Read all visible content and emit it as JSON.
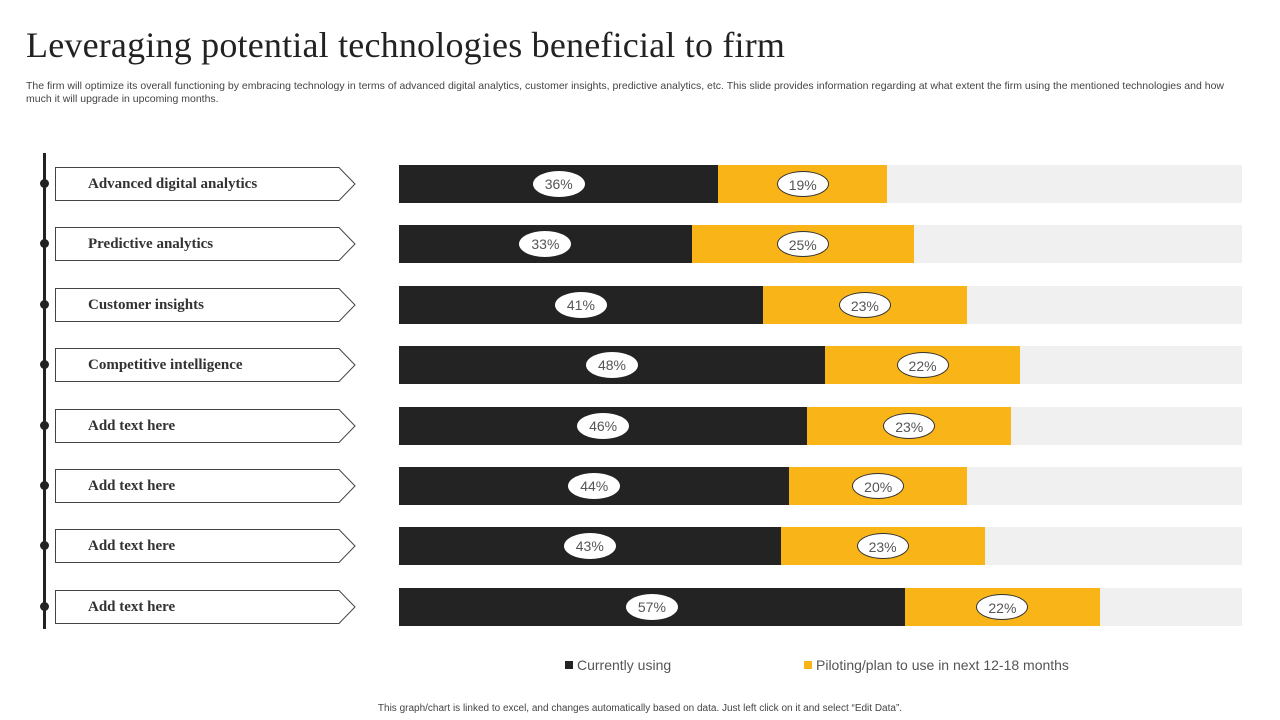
{
  "title": "Leveraging potential technologies beneficial to firm",
  "subtitle": "The firm will optimize its overall functioning by embracing technology in terms of advanced digital analytics, customer insights, predictive analytics, etc. This slide provides information regarding at what extent the firm using the mentioned technologies and how much it will upgrade in upcoming months.",
  "footer": "This graph/chart is linked to excel, and changes automatically based on data. Just left click on it and select “Edit Data”.",
  "colors": {
    "currently_using": "#232323",
    "piloting": "#f9b418",
    "track": "#f0f0f0"
  },
  "chart_data": {
    "type": "bar",
    "orientation": "horizontal",
    "stacked": true,
    "title": "",
    "xlabel": "",
    "ylabel": "",
    "xlim": [
      0,
      95
    ],
    "grid": false,
    "legend_position": "bottom",
    "categories": [
      "Advanced digital analytics",
      "Predictive analytics",
      "Customer insights",
      "Competitive intelligence",
      "Add text here",
      "Add text here",
      "Add text here",
      "Add text here"
    ],
    "series": [
      {
        "name": "Currently using",
        "values": [
          36,
          33,
          41,
          48,
          46,
          44,
          43,
          57
        ]
      },
      {
        "name": "Piloting/plan to use in next 12-18 months",
        "values": [
          19,
          25,
          23,
          22,
          23,
          20,
          23,
          22
        ]
      }
    ],
    "value_suffix": "%"
  }
}
